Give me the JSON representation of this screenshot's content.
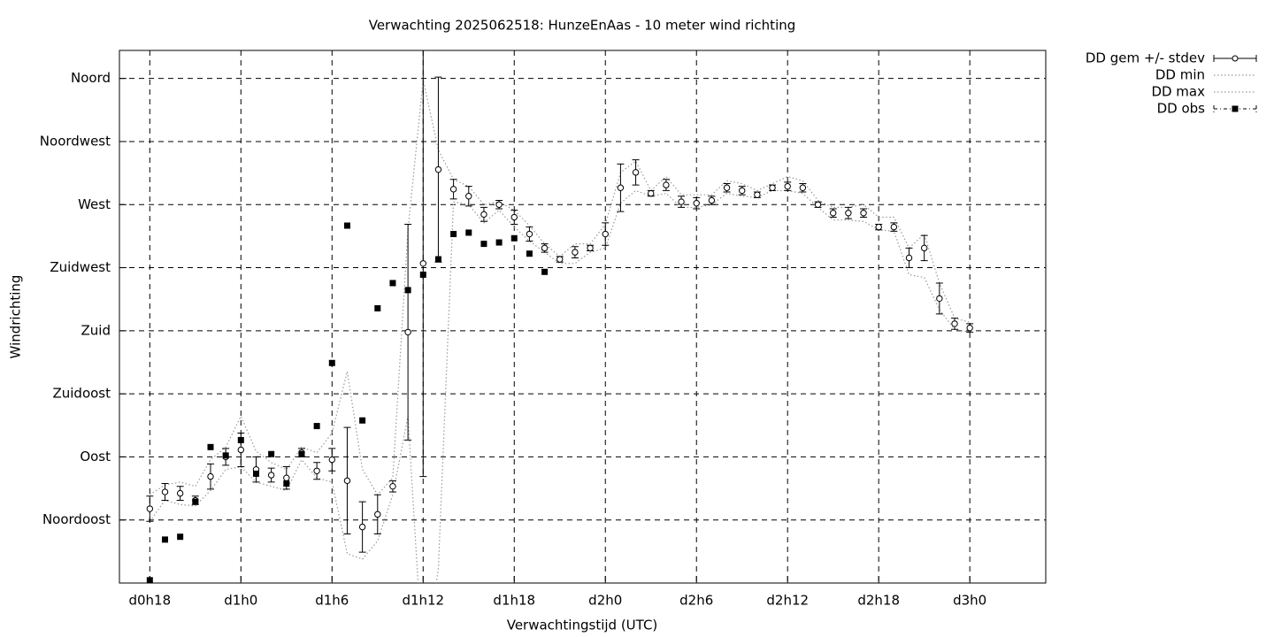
{
  "chart_data": {
    "type": "line",
    "title": "Verwachting 2025062518: HunzeEnAas - 10 meter wind richting",
    "xlabel": "Verwachtingstijd (UTC)",
    "ylabel": "Windrichting",
    "x": [
      18,
      19,
      20,
      21,
      22,
      23,
      24,
      25,
      26,
      27,
      28,
      29,
      30,
      31,
      32,
      33,
      34,
      35,
      36,
      37,
      38,
      39,
      40,
      41,
      42,
      43,
      44,
      45,
      46,
      47,
      48,
      49,
      50,
      51,
      52,
      53,
      54,
      55,
      56,
      57,
      58,
      59,
      60,
      61,
      62,
      63,
      64,
      65,
      66,
      67,
      68,
      69,
      70,
      71,
      72
    ],
    "xlim": [
      16,
      77
    ],
    "ylim": [
      0,
      380
    ],
    "xticks": [
      {
        "value": 18,
        "label": "d0h18"
      },
      {
        "value": 24,
        "label": "d1h0"
      },
      {
        "value": 30,
        "label": "d1h6"
      },
      {
        "value": 36,
        "label": "d1h12"
      },
      {
        "value": 42,
        "label": "d1h18"
      },
      {
        "value": 48,
        "label": "d2h0"
      },
      {
        "value": 54,
        "label": "d2h6"
      },
      {
        "value": 60,
        "label": "d2h12"
      },
      {
        "value": 66,
        "label": "d2h18"
      },
      {
        "value": 72,
        "label": "d3h0"
      }
    ],
    "yticks": [
      {
        "value": 45,
        "label": "Noordoost"
      },
      {
        "value": 90,
        "label": "Oost"
      },
      {
        "value": 135,
        "label": "Zuidoost"
      },
      {
        "value": 180,
        "label": "Zuid"
      },
      {
        "value": 225,
        "label": "Zuidwest"
      },
      {
        "value": 270,
        "label": "West"
      },
      {
        "value": 315,
        "label": "Noordwest"
      },
      {
        "value": 360,
        "label": "Noord"
      }
    ],
    "grid": true,
    "legend": "outside-top-right",
    "series": [
      {
        "name": "DD gem +/- stdev",
        "color": "#000000",
        "values": [
          53,
          65,
          64,
          59,
          76,
          90,
          95,
          81,
          77,
          75,
          93,
          80,
          88,
          73,
          40,
          49,
          69,
          179,
          228,
          295,
          281,
          276,
          263,
          270,
          261,
          249,
          239,
          231,
          236,
          239,
          249,
          282,
          293,
          278,
          284,
          272,
          271,
          273,
          282,
          280,
          277,
          282,
          283,
          282,
          270,
          264,
          264,
          264,
          254,
          254,
          232,
          239,
          203,
          185,
          182
        ],
        "errors": [
          9,
          6,
          5,
          3,
          9,
          6,
          12,
          9,
          5,
          8,
          3,
          6,
          8,
          38,
          18,
          14,
          4,
          77,
          152,
          66,
          7,
          7,
          5,
          3,
          5,
          5,
          3,
          2,
          4,
          2,
          8,
          17,
          9,
          2,
          4,
          4,
          4,
          3,
          3,
          3,
          2,
          2,
          3,
          3,
          2,
          3,
          4,
          3,
          2,
          3,
          7,
          9,
          11,
          4,
          3
        ]
      },
      {
        "name": "DD min",
        "color": "#999999",
        "values": [
          44,
          59,
          56,
          55,
          66,
          81,
          83,
          72,
          69,
          66,
          88,
          75,
          72,
          21,
          17,
          30,
          63,
          119,
          -60,
          10,
          272,
          270,
          257,
          266,
          254,
          244,
          236,
          228,
          228,
          236,
          239,
          271,
          280,
          276,
          278,
          268,
          268,
          270,
          278,
          276,
          275,
          280,
          280,
          278,
          268,
          259,
          259,
          258,
          252,
          251,
          220,
          218,
          195,
          181,
          179
        ]
      },
      {
        "name": "DD max",
        "color": "#999999",
        "values": [
          63,
          70,
          72,
          69,
          88,
          97,
          119,
          94,
          86,
          81,
          97,
          93,
          107,
          151,
          81,
          63,
          75,
          252,
          359,
          309,
          288,
          283,
          270,
          272,
          266,
          255,
          242,
          233,
          242,
          242,
          256,
          293,
          301,
          280,
          290,
          277,
          277,
          277,
          287,
          285,
          280,
          285,
          290,
          287,
          273,
          268,
          268,
          270,
          261,
          261,
          239,
          249,
          214,
          189,
          186
        ]
      },
      {
        "name": "DD obs",
        "color": "#000000",
        "values": [
          2,
          31,
          33,
          58,
          97,
          91,
          102,
          78,
          92,
          71,
          92,
          112,
          157,
          255,
          116,
          196,
          214,
          209,
          220,
          231,
          249,
          250,
          242,
          243,
          246,
          235,
          222,
          null,
          null,
          null,
          null,
          null,
          null,
          null,
          null,
          null,
          null,
          null,
          null,
          null,
          null,
          null,
          null,
          null,
          null,
          null,
          null,
          null,
          null,
          null,
          null,
          null,
          null,
          null,
          null
        ]
      }
    ]
  }
}
